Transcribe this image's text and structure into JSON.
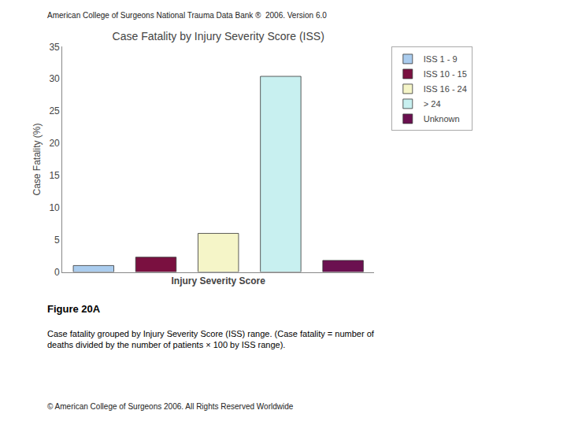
{
  "chart_data": {
    "type": "bar",
    "title": "Case Fatality by Injury Severity Score (ISS)",
    "xlabel": "Injury Severity Score",
    "ylabel": "Case Fatality (%)",
    "annotations": [
      "American College of Surgeons National Trauma Data Bank ®  2006. Version 6.0",
      "Figure 20A",
      "Case fatality grouped by Injury Severity Score (ISS) range. (Case fatality = number of\ndeaths divided by the number of patients × 100 by ISS range).",
      "© American College of Surgeons 2006. All Rights Reserved Worldwide"
    ],
    "categories": [
      "ISS 1 - 9",
      "ISS 10 - 15",
      "ISS 16 - 24",
      "> 24",
      "Unknown"
    ],
    "values": [
      1.0,
      2.3,
      6.0,
      30.4,
      1.8
    ],
    "colors": [
      "#aaccee",
      "#7a1040",
      "#f5f5c8",
      "#c8f0f0",
      "#6b1050"
    ],
    "ylim": [
      0,
      35
    ],
    "yticks": [
      0,
      5,
      10,
      15,
      20,
      25,
      30,
      35
    ],
    "grid": false,
    "legend": "right",
    "tick_labels": "y"
  }
}
